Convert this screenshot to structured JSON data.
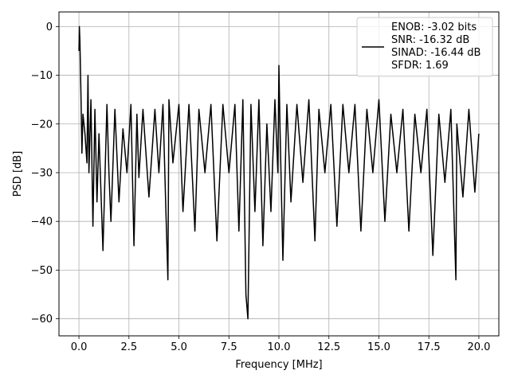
{
  "chart_data": {
    "type": "line",
    "title": "",
    "xlabel": "Frequency [MHz]",
    "ylabel": "PSD [dB]",
    "xlim": [
      -0.999,
      20.999
    ],
    "ylim": [
      -63.5,
      3.0
    ],
    "xticks": [
      0.0,
      2.5,
      5.0,
      7.5,
      10.0,
      12.5,
      15.0,
      17.5,
      20.0
    ],
    "xtick_labels": [
      "0.0",
      "2.5",
      "5.0",
      "7.5",
      "10.0",
      "12.5",
      "15.0",
      "17.5",
      "20.0"
    ],
    "yticks": [
      0,
      -10,
      -20,
      -30,
      -40,
      -50,
      -60
    ],
    "ytick_labels": [
      "0",
      "−10",
      "−20",
      "−30",
      "−40",
      "−50",
      "−60"
    ],
    "grid": true,
    "legend_position": "top-right",
    "legend_lines": [
      "ENOB: -3.02 bits",
      "SNR: -16.32 dB",
      "SINAD: -16.44 dB",
      "SFDR: 1.69"
    ],
    "series": [
      {
        "color": "#000000",
        "x": [
          0.0,
          0.02,
          0.05,
          0.08,
          0.1,
          0.15,
          0.2,
          0.3,
          0.4,
          0.45,
          0.5,
          0.6,
          0.7,
          0.8,
          0.9,
          1.0,
          1.2,
          1.4,
          1.5,
          1.6,
          1.8,
          2.0,
          2.2,
          2.4,
          2.6,
          2.75,
          2.9,
          3.0,
          3.2,
          3.5,
          3.8,
          4.0,
          4.2,
          4.35,
          4.45,
          4.5,
          4.7,
          5.0,
          5.2,
          5.5,
          5.8,
          6.0,
          6.3,
          6.6,
          6.9,
          7.2,
          7.5,
          7.8,
          8.0,
          8.2,
          8.35,
          8.45,
          8.6,
          8.8,
          9.0,
          9.2,
          9.4,
          9.6,
          9.8,
          9.95,
          10.0,
          10.05,
          10.2,
          10.4,
          10.6,
          10.9,
          11.2,
          11.5,
          11.8,
          12.0,
          12.3,
          12.6,
          12.9,
          13.2,
          13.5,
          13.8,
          14.1,
          14.4,
          14.7,
          15.0,
          15.3,
          15.6,
          15.9,
          16.2,
          16.5,
          16.8,
          17.1,
          17.4,
          17.7,
          18.0,
          18.3,
          18.6,
          18.85,
          18.9,
          19.2,
          19.5,
          19.8,
          20.0
        ],
        "y": [
          -5,
          0,
          -3,
          -10,
          -14,
          -26,
          -18,
          -22,
          -28,
          -10,
          -30,
          -15,
          -41,
          -17,
          -36,
          -22,
          -46,
          -16,
          -30,
          -40,
          -17,
          -36,
          -21,
          -30,
          -16,
          -45,
          -18,
          -31,
          -17,
          -35,
          -17,
          -30,
          -16,
          -38,
          -52,
          -15,
          -28,
          -16,
          -38,
          -16,
          -42,
          -17,
          -30,
          -16,
          -44,
          -16,
          -30,
          -16,
          -42,
          -15,
          -55,
          -60,
          -16,
          -38,
          -15,
          -45,
          -20,
          -38,
          -15,
          -30,
          -8,
          -20,
          -48,
          -16,
          -36,
          -16,
          -32,
          -15,
          -44,
          -17,
          -30,
          -16,
          -41,
          -16,
          -30,
          -16,
          -42,
          -17,
          -30,
          -15,
          -40,
          -18,
          -30,
          -17,
          -42,
          -18,
          -30,
          -17,
          -47,
          -18,
          -32,
          -17,
          -52,
          -20,
          -35,
          -17,
          -34,
          -22
        ]
      }
    ]
  }
}
